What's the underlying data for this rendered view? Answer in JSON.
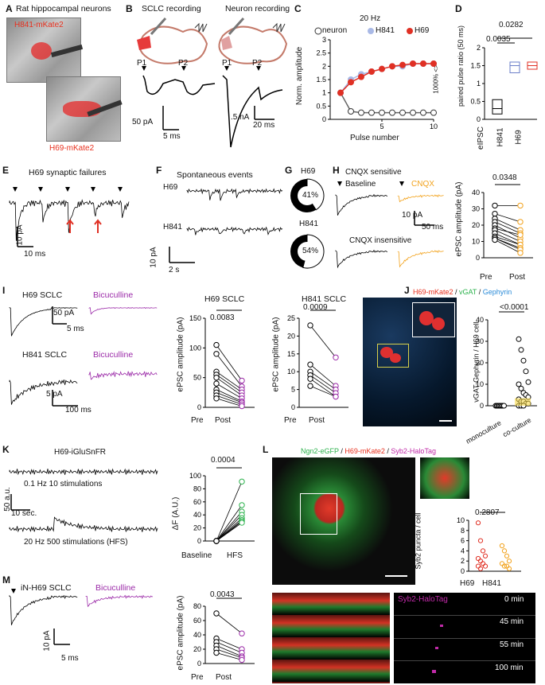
{
  "panels": {
    "A": {
      "letter": "A",
      "title": "Rat hippocampal neurons",
      "label1": "H841-mKate2",
      "label2": "H69-mKate2"
    },
    "B": {
      "letter": "B",
      "title1": "SCLC recording",
      "title2": "Neuron recording",
      "p1": "P1",
      "p2": "P2",
      "scale1_y": "50 pA",
      "scale1_x": "5 ms",
      "scale2_y": ".5 nA",
      "scale2_x": "20 ms"
    },
    "C": {
      "letter": "C",
      "freq": "20 Hz",
      "legend": [
        "neuron",
        "H841",
        "H69"
      ],
      "ylabel": "Norm. amplitude",
      "xlabel": "Pulse number",
      "side_label": "1000% <>"
    },
    "D": {
      "letter": "D",
      "ylabel": "paired pulse ratio (50 ms)",
      "p1": "0.0282",
      "p2": "0.0035"
    },
    "E": {
      "letter": "E",
      "title": "H69 synaptic failures",
      "scale_y": "10 pA",
      "scale_x": "10 ms"
    },
    "F": {
      "letter": "F",
      "title": "Spontaneous events",
      "row1": "H69",
      "row2": "H841",
      "scale_y": "10 pA",
      "scale_x": "2 s"
    },
    "G": {
      "letter": "G",
      "row1": "H69",
      "pct1": "41%",
      "row2": "H841",
      "pct2": "54%"
    },
    "H": {
      "letter": "H",
      "sens": "CNQX sensitive",
      "baseline": "Baseline",
      "cnqx": "CNQX",
      "insens": "CNQX insensitive",
      "scale_y": "10 pA",
      "scale_x": "50 ms",
      "pval": "0.0348",
      "ylabel": "ePSC amplitude (pA)"
    },
    "I": {
      "letter": "I",
      "h69": "H69 SCLC",
      "bic": "Bicuculline",
      "h841": "H841 SCLC",
      "scale1_y": "50 pA",
      "scale1_x": "5 ms",
      "scale2_y": "5 pA",
      "scale2_x": "100 ms",
      "title1": "H69 SCLC",
      "title2": "H841 SCLC",
      "p1": "0.0083",
      "p2": "0.0009",
      "ylabel": "ePSC amplitude (pA)"
    },
    "J": {
      "letter": "J",
      "t1": "H69-mKate2",
      "t2": "vGAT",
      "t3": "Gephyrin",
      "pval": "<0.0001",
      "ylabel": "vGAT-Gephyrin / H69 cell"
    },
    "K": {
      "letter": "K",
      "title": "H69-iGluSnFR",
      "trace1": "0.1 Hz 10 stimulations",
      "trace2": "20 Hz 500 stimulations (HFS)",
      "scale_y": "50 a.u.",
      "scale_x": "10 sec.",
      "pval": "0.0004",
      "ylabel": "ΔF (A.U.)"
    },
    "L": {
      "letter": "L",
      "t1": "Ngn2-eGFP",
      "t2": "H69-mKate2",
      "t3": "Syb2-HaloTag",
      "pval": "0.2807",
      "ylabel": "Syb2 puncta / cell",
      "halo": "Syb2-HaloTag",
      "times": [
        "0 min",
        "45 min",
        "55 min",
        "100 min"
      ]
    },
    "M": {
      "letter": "M",
      "title": "iN-H69 SCLC",
      "bic": "Bicuculline",
      "scale_y": "10 pA",
      "scale_x": "5 ms",
      "pval": "0.0043",
      "ylabel": "ePSC amplitude (pA)"
    }
  },
  "axes": {
    "pre": "Pre",
    "post": "Post",
    "baseline": "Baseline",
    "hfs": "HFS",
    "mono": "monoculture",
    "co": "co-culture",
    "eipsc": "eIPSC",
    "h841": "H841",
    "h69": "H69",
    "C_y": [
      "0",
      "0.5",
      "1",
      "1.5",
      "2",
      "2.5",
      "3"
    ],
    "C_x": [
      "5",
      "10"
    ],
    "D_y": [
      "0",
      "0.5",
      "1",
      "1.5",
      "2"
    ],
    "H_y": [
      "0",
      "10",
      "20",
      "30",
      "40"
    ],
    "I1_y": [
      "0",
      "50",
      "100",
      "150"
    ],
    "I2_y": [
      "0",
      "5",
      "10",
      "15",
      "20",
      "25"
    ],
    "J_y": [
      "0",
      "10",
      "20",
      "30",
      "40"
    ],
    "K_y": [
      "0",
      "20",
      "40",
      "60",
      "80",
      "100"
    ],
    "L_y": [
      "0",
      "2",
      "4",
      "6",
      "8",
      "10"
    ],
    "M_y": [
      "0",
      "20",
      "40",
      "60",
      "80"
    ]
  },
  "chart_data": [
    {
      "type": "line",
      "name": "C",
      "series": [
        {
          "name": "neuron",
          "x": [
            1,
            2,
            3,
            4,
            5,
            6,
            7,
            8,
            9,
            10
          ],
          "values": [
            1,
            0.3,
            0.25,
            0.25,
            0.25,
            0.25,
            0.25,
            0.25,
            0.25,
            0.25
          ]
        },
        {
          "name": "H841",
          "x": [
            1,
            2,
            3,
            4,
            5,
            6,
            7,
            8,
            9,
            10
          ],
          "values": [
            1,
            1.5,
            1.7,
            1.8,
            1.9,
            2.0,
            2.0,
            2.1,
            2.1,
            2.1
          ]
        },
        {
          "name": "H69",
          "x": [
            1,
            2,
            3,
            4,
            5,
            6,
            7,
            8,
            9,
            10
          ],
          "values": [
            1,
            1.4,
            1.6,
            1.8,
            1.9,
            2.0,
            2.05,
            2.1,
            2.1,
            2.1
          ]
        }
      ],
      "xlabel": "Pulse number",
      "ylabel": "Norm. amplitude",
      "ylim": [
        0,
        3
      ]
    },
    {
      "type": "box",
      "name": "D",
      "categories": [
        "eIPSC",
        "H841",
        "H69"
      ],
      "medians": [
        0.3,
        1.5,
        1.5
      ],
      "q1": [
        0.15,
        1.3,
        1.4
      ],
      "q3": [
        0.55,
        1.6,
        1.6
      ],
      "ylim": [
        0,
        2
      ]
    },
    {
      "type": "pie",
      "name": "G",
      "values": [
        {
          "label": "H69",
          "pct": 41
        },
        {
          "label": "H841",
          "pct": 54
        }
      ]
    },
    {
      "type": "paired",
      "name": "H",
      "pre": [
        32,
        27,
        24,
        22,
        20,
        18,
        17,
        15,
        13,
        12,
        12,
        11
      ],
      "post": [
        32,
        22,
        17,
        15,
        12,
        14,
        10,
        8,
        8,
        6,
        5,
        3
      ],
      "ylim": [
        0,
        40
      ]
    },
    {
      "type": "paired",
      "name": "I1",
      "pre": [
        105,
        90,
        60,
        55,
        50,
        40,
        30,
        25,
        20,
        15
      ],
      "post": [
        45,
        35,
        30,
        25,
        20,
        15,
        10,
        8,
        5,
        2
      ],
      "ylim": [
        0,
        150
      ]
    },
    {
      "type": "paired",
      "name": "I2",
      "pre": [
        23,
        12,
        10,
        9,
        8,
        6
      ],
      "post": [
        14,
        6,
        5,
        4,
        3,
        3
      ],
      "ylim": [
        0,
        25
      ]
    },
    {
      "type": "scatter",
      "name": "J",
      "categories": [
        "monoculture",
        "co-culture"
      ],
      "mono": [
        0,
        0,
        0,
        0,
        0,
        0,
        0,
        0
      ],
      "co": [
        31,
        26,
        21,
        16,
        11,
        10,
        8,
        6,
        5,
        4,
        3,
        2,
        2,
        1,
        1,
        0,
        0,
        0
      ],
      "ylim": [
        0,
        40
      ]
    },
    {
      "type": "paired",
      "name": "K",
      "pre": [
        0,
        0,
        0,
        0,
        0,
        0,
        0,
        0
      ],
      "post": [
        91,
        55,
        45,
        40,
        35,
        32,
        30,
        28
      ],
      "ylim": [
        0,
        100
      ]
    },
    {
      "type": "scatter",
      "name": "L",
      "categories": [
        "H69",
        "H841"
      ],
      "h69": [
        9.5,
        6,
        4,
        3,
        2.5,
        2,
        1.5,
        1,
        1,
        0.5
      ],
      "h841": [
        5,
        4,
        3,
        2,
        1.5,
        1,
        1,
        0.5
      ],
      "ylim": [
        0,
        10
      ]
    },
    {
      "type": "paired",
      "name": "M",
      "pre": [
        70,
        35,
        30,
        25,
        20,
        15
      ],
      "post": [
        42,
        20,
        15,
        10,
        8,
        5
      ],
      "ylim": [
        0,
        80
      ]
    }
  ]
}
